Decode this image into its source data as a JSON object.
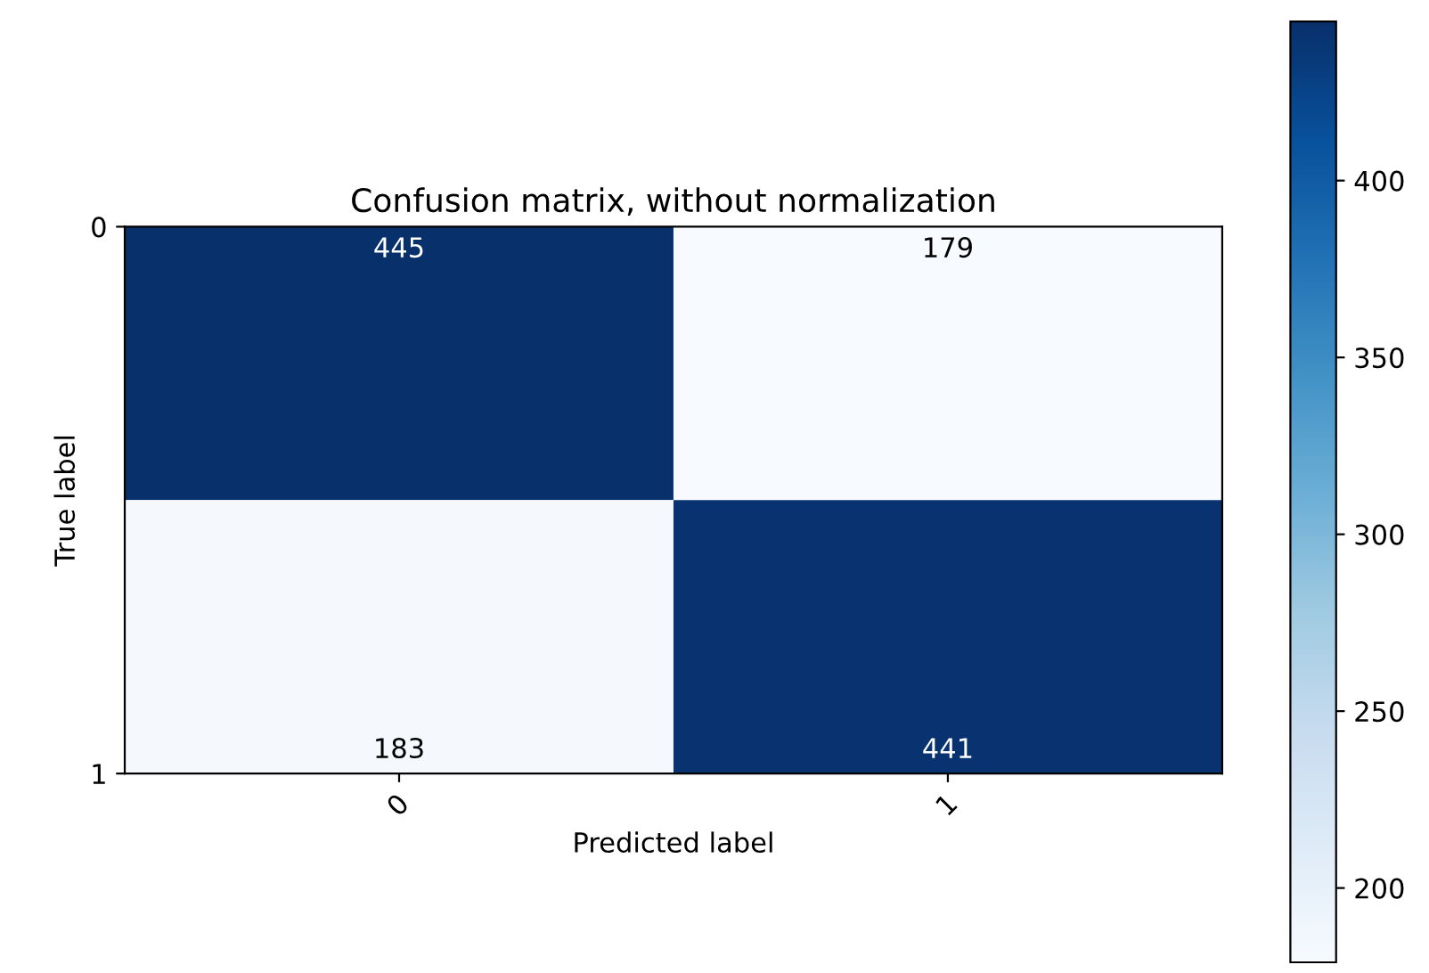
{
  "chart_data": {
    "type": "heatmap",
    "title": "Confusion matrix, without normalization",
    "xlabel": "Predicted label",
    "ylabel": "True label",
    "categories": [
      "0",
      "1"
    ],
    "y_categories": [
      "0",
      "1"
    ],
    "cells": [
      [
        445,
        179
      ],
      [
        183,
        441
      ]
    ],
    "data_labels": true,
    "clim": [
      179,
      445
    ],
    "cticks": [
      200,
      250,
      300,
      350,
      400
    ]
  }
}
